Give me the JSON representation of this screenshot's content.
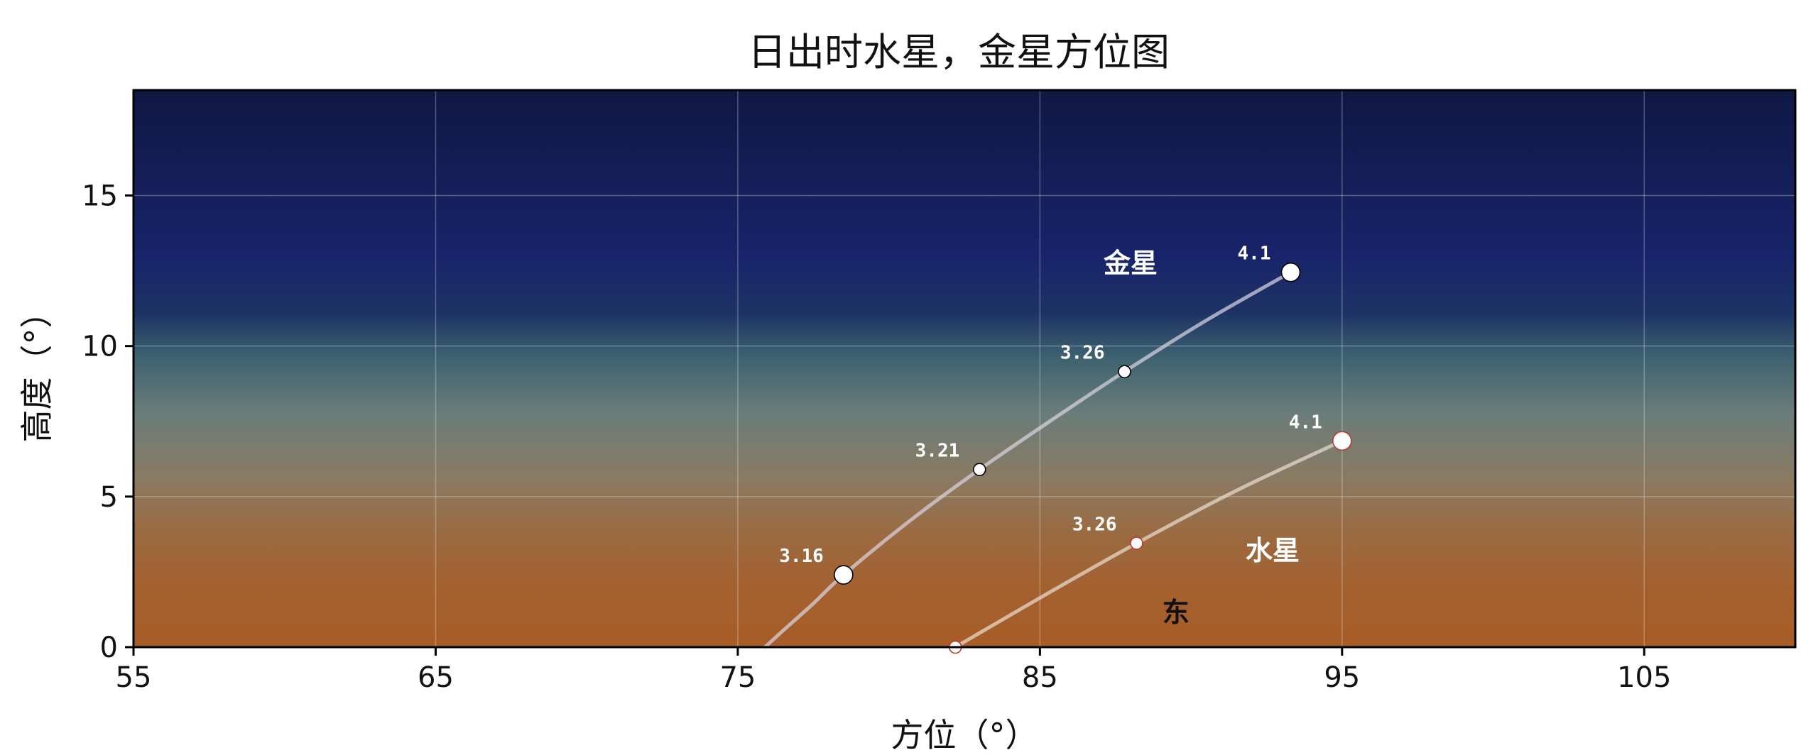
{
  "chart_data": {
    "type": "line",
    "title": "日出时水星，金星方位图",
    "xlabel": "方位（°）",
    "ylabel": "高度（°）",
    "xlim": [
      55,
      110
    ],
    "ylim": [
      0,
      18.5
    ],
    "x_ticks": [
      55,
      65,
      75,
      85,
      95,
      105
    ],
    "y_ticks": [
      0,
      5,
      10,
      15
    ],
    "grid": true,
    "background": "sky gradient: dark navy at top to orange-brown at horizon",
    "series": [
      {
        "name": "金星",
        "color": "#ffffff",
        "marker_edge": "#000000",
        "line_color": "#d8d2e0",
        "curve": [
          [
            75.9,
            0
          ],
          [
            76.5,
            0.55
          ],
          [
            77.5,
            1.45
          ],
          [
            78.5,
            2.4
          ],
          [
            80.7,
            4.2
          ],
          [
            83.0,
            5.9
          ],
          [
            85.4,
            7.55
          ],
          [
            87.8,
            9.15
          ],
          [
            90.5,
            10.85
          ],
          [
            93.3,
            12.45
          ]
        ],
        "points": [
          {
            "x": 78.5,
            "y": 2.4,
            "label": "3.16",
            "size": "large"
          },
          {
            "x": 83.0,
            "y": 5.9,
            "label": "3.21",
            "size": "small"
          },
          {
            "x": 87.8,
            "y": 9.15,
            "label": "3.26",
            "size": "small"
          },
          {
            "x": 93.3,
            "y": 12.45,
            "label": "4.1",
            "size": "large"
          }
        ],
        "name_at": {
          "x": 88.0,
          "y": 12.75
        }
      },
      {
        "name": "水星",
        "color": "#ffffff",
        "marker_edge": "#c0392b",
        "line_color": "#e8dcd0",
        "curve": [
          [
            82.2,
            0
          ],
          [
            85.2,
            1.75
          ],
          [
            88.2,
            3.45
          ],
          [
            91.5,
            5.2
          ],
          [
            95.0,
            6.85
          ]
        ],
        "points": [
          {
            "x": 82.2,
            "y": 0.0,
            "label": "",
            "size": "small"
          },
          {
            "x": 88.2,
            "y": 3.45,
            "label": "3.26",
            "size": "small"
          },
          {
            "x": 95.0,
            "y": 6.85,
            "label": "4.1",
            "size": "large"
          }
        ],
        "name_at": {
          "x": 92.7,
          "y": 3.2
        }
      }
    ],
    "annotations": [
      {
        "text": "东",
        "x": 89.5,
        "y": 1.15
      }
    ]
  }
}
